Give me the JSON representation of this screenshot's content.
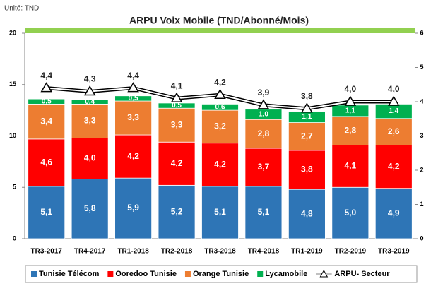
{
  "chart_data": {
    "type": "stacked-bar-line",
    "title": "ARPU Voix Mobile (TND/Abonné/Mois)",
    "subtitle": "Unité: TND",
    "categories": [
      "TR3-2017",
      "TR4-2017",
      "TR1-2018",
      "TR2-2018",
      "TR3-2018",
      "TR4-2018",
      "TR1-2019",
      "TR2-2019",
      "TR3-2019"
    ],
    "ylim": [
      0,
      20
    ],
    "yticks": [
      0,
      5,
      10,
      15,
      20
    ],
    "y2lim": [
      0,
      6
    ],
    "y2ticks": [
      0,
      1,
      2,
      3,
      4,
      5,
      6
    ],
    "series": [
      {
        "name": "Tunisie Télécom",
        "color": "#2e75b6",
        "values": [
          5.1,
          5.8,
          5.9,
          5.2,
          5.1,
          5.1,
          4.8,
          5.0,
          4.9
        ],
        "value_labels": [
          "5,1",
          "5,8",
          "5,9",
          "5,2",
          "5,1",
          "5,1",
          "4,8",
          "5,0",
          "4,9"
        ]
      },
      {
        "name": "Ooredoo Tunisie",
        "color": "#ff0000",
        "values": [
          4.6,
          4.0,
          4.2,
          4.2,
          4.2,
          3.7,
          3.8,
          4.1,
          4.2
        ],
        "value_labels": [
          "4,6",
          "4,0",
          "4,2",
          "4,2",
          "4,2",
          "3,7",
          "3,8",
          "4,1",
          "4,2"
        ]
      },
      {
        "name": "Orange Tunisie",
        "color": "#ed7d31",
        "values": [
          3.4,
          3.3,
          3.3,
          3.3,
          3.2,
          2.8,
          2.7,
          2.8,
          2.6
        ],
        "value_labels": [
          "3,4",
          "3,3",
          "3,3",
          "3,3",
          "3,2",
          "2,8",
          "2,7",
          "2,8",
          "2,6"
        ]
      },
      {
        "name": "Lycamobile",
        "color": "#00b050",
        "values": [
          0.5,
          0.4,
          0.5,
          0.5,
          0.6,
          1.0,
          1.1,
          1.1,
          1.4
        ],
        "value_labels": [
          "0,5",
          "0,4",
          "0,5",
          "0,5",
          "0,6",
          "1,0",
          "1,1",
          "1,1",
          "1,4"
        ]
      },
      {
        "name": "ARPU- Secteur",
        "color": "#000000",
        "axis": "y2",
        "values": [
          4.4,
          4.3,
          4.4,
          4.1,
          4.2,
          3.9,
          3.8,
          4.0,
          4.0
        ],
        "value_labels": [
          "4,4",
          "4,3",
          "4,4",
          "4,1",
          "4,2",
          "3,9",
          "3,8",
          "4,0",
          "4,0"
        ]
      }
    ]
  }
}
